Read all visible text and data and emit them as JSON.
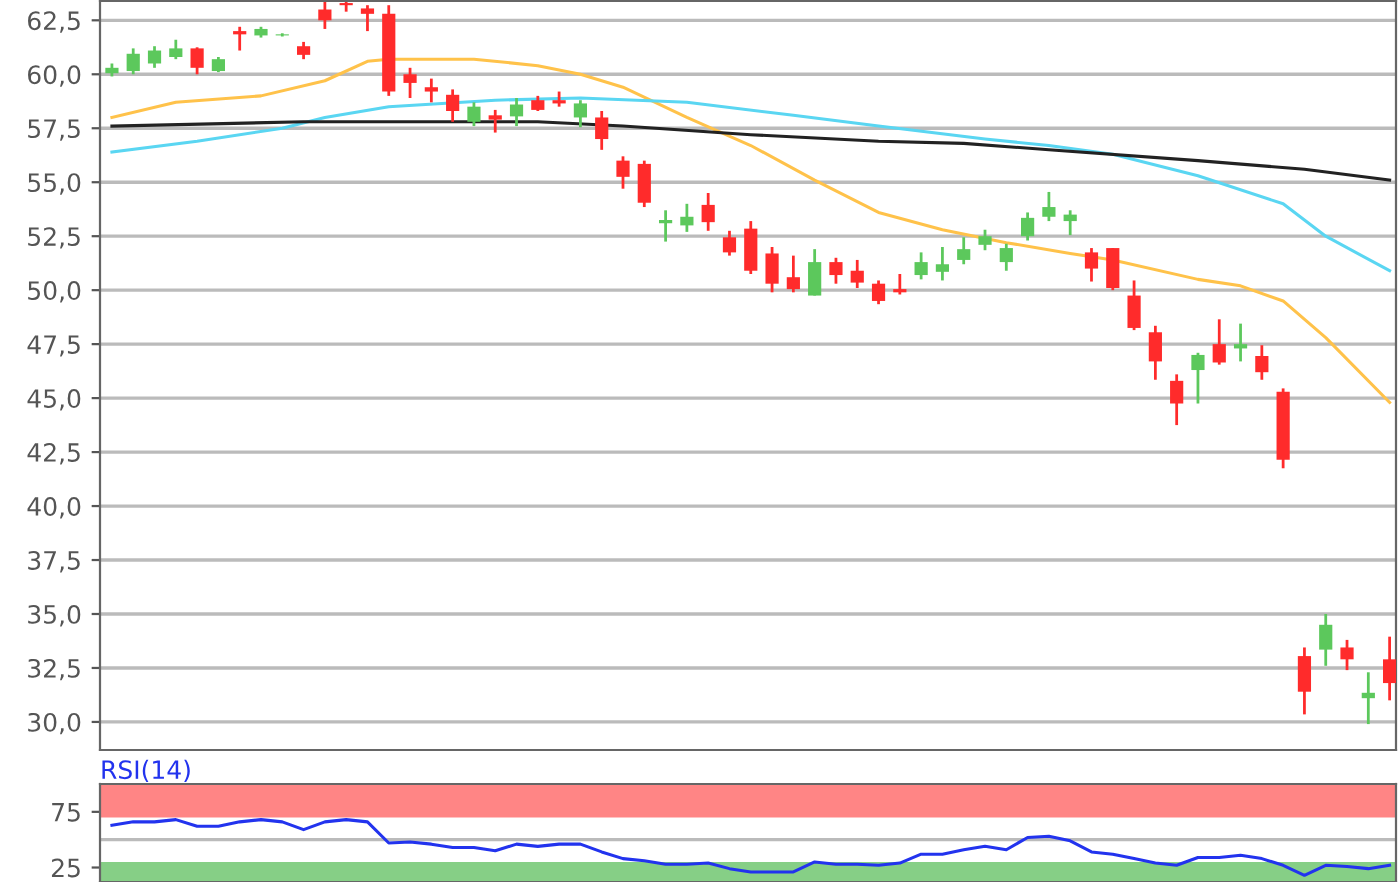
{
  "chart_data": [
    {
      "type": "candlestick",
      "categories": [
        null,
        null,
        null,
        null,
        null,
        null,
        null,
        null,
        null,
        null,
        null,
        null,
        null,
        null,
        null,
        null,
        null,
        null,
        null,
        null,
        null,
        null,
        null,
        null,
        null,
        null,
        null,
        null,
        null,
        null,
        null,
        null,
        null,
        null,
        null,
        null,
        null,
        null,
        null,
        null,
        null,
        null,
        null,
        null,
        null,
        null,
        null,
        null,
        null,
        null,
        null,
        null,
        null,
        null,
        null,
        null,
        null,
        null,
        null,
        null,
        null
      ],
      "ohlc": [
        [
          60.05,
          60.5,
          59.9,
          60.3
        ],
        [
          60.15,
          61.2,
          60.0,
          60.95
        ],
        [
          60.5,
          61.3,
          60.3,
          61.1
        ],
        [
          60.8,
          61.6,
          60.7,
          61.2
        ],
        [
          61.2,
          61.25,
          60.0,
          60.3
        ],
        [
          60.15,
          60.8,
          60.1,
          60.7
        ],
        [
          62.0,
          62.2,
          61.1,
          61.85
        ],
        [
          61.8,
          62.2,
          61.7,
          62.1
        ],
        [
          61.8,
          61.9,
          61.75,
          61.85
        ],
        [
          61.3,
          61.5,
          60.7,
          60.9
        ],
        [
          63.0,
          63.35,
          62.1,
          62.5
        ],
        [
          63.3,
          63.35,
          62.9,
          63.2
        ],
        [
          63.05,
          63.2,
          62.0,
          62.8
        ],
        [
          62.8,
          63.2,
          59.0,
          59.2
        ],
        [
          60.0,
          60.3,
          58.9,
          59.6
        ],
        [
          59.4,
          59.8,
          58.7,
          59.2
        ],
        [
          59.05,
          59.3,
          57.8,
          58.3
        ],
        [
          57.8,
          58.7,
          57.6,
          58.5
        ],
        [
          58.1,
          58.35,
          57.3,
          57.9
        ],
        [
          58.05,
          58.9,
          57.6,
          58.6
        ],
        [
          58.8,
          59.0,
          58.3,
          58.35
        ],
        [
          58.8,
          59.2,
          58.5,
          58.65
        ],
        [
          58.0,
          58.8,
          57.55,
          58.65
        ],
        [
          58.0,
          58.3,
          56.5,
          57.0
        ],
        [
          56.0,
          56.2,
          54.7,
          55.25
        ],
        [
          55.85,
          56.0,
          53.85,
          54.05
        ],
        [
          53.1,
          53.7,
          52.25,
          53.25
        ],
        [
          53.0,
          54.0,
          52.7,
          53.4
        ],
        [
          53.95,
          54.5,
          52.75,
          53.15
        ],
        [
          52.45,
          52.75,
          51.6,
          51.75
        ],
        [
          52.85,
          53.2,
          50.75,
          50.9
        ],
        [
          51.7,
          52.0,
          49.9,
          50.3
        ],
        [
          50.6,
          51.6,
          49.9,
          50.05
        ],
        [
          49.75,
          51.9,
          49.75,
          51.3
        ],
        [
          51.3,
          51.5,
          50.3,
          50.7
        ],
        [
          50.9,
          51.4,
          50.1,
          50.35
        ],
        [
          50.3,
          50.45,
          49.35,
          49.5
        ],
        [
          50.05,
          50.75,
          49.8,
          49.9
        ],
        [
          50.7,
          51.75,
          50.5,
          51.3
        ],
        [
          50.85,
          52.0,
          50.45,
          51.2
        ],
        [
          51.4,
          52.45,
          51.2,
          51.9
        ],
        [
          52.1,
          52.8,
          51.85,
          52.5
        ],
        [
          51.3,
          52.15,
          50.9,
          51.95
        ],
        [
          52.5,
          53.6,
          52.3,
          53.35
        ],
        [
          53.4,
          54.55,
          53.2,
          53.85
        ],
        [
          53.2,
          53.7,
          52.55,
          53.5
        ],
        [
          51.75,
          51.95,
          50.4,
          51.0
        ],
        [
          51.95,
          51.95,
          50.0,
          50.1
        ],
        [
          49.75,
          50.45,
          48.15,
          48.25
        ],
        [
          48.05,
          48.35,
          45.85,
          46.7
        ],
        [
          45.8,
          46.1,
          43.75,
          44.75
        ],
        [
          46.3,
          47.1,
          44.75,
          47.0
        ],
        [
          47.5,
          48.65,
          46.55,
          46.65
        ],
        [
          47.3,
          48.45,
          46.7,
          47.5
        ],
        [
          46.95,
          47.45,
          45.85,
          46.2
        ],
        [
          45.3,
          45.45,
          41.75,
          42.15
        ],
        [
          33.05,
          33.45,
          30.35,
          31.4
        ],
        [
          33.35,
          35.0,
          32.6,
          34.5
        ],
        [
          33.45,
          33.8,
          32.4,
          32.9
        ],
        [
          31.1,
          32.3,
          29.9,
          31.35
        ],
        [
          32.9,
          33.95,
          31.0,
          31.8
        ]
      ],
      "series": [
        {
          "type": "line",
          "color": "#ffc24a",
          "values": [
            58.0,
            null,
            null,
            58.7,
            null,
            null,
            null,
            59.0,
            null,
            null,
            59.7,
            null,
            60.6,
            60.7,
            null,
            null,
            null,
            60.7,
            null,
            null,
            60.4,
            null,
            60.0,
            null,
            59.4,
            null,
            null,
            58.0,
            null,
            null,
            56.7,
            null,
            null,
            55.1,
            null,
            null,
            53.6,
            null,
            null,
            52.8,
            null,
            null,
            52.2,
            null,
            null,
            51.7,
            null,
            51.4,
            null,
            null,
            null,
            50.5,
            null,
            50.2,
            null,
            49.5,
            null,
            47.8,
            null,
            null,
            44.8
          ]
        },
        {
          "type": "line",
          "color": "#5ad6f2",
          "values": [
            56.4,
            null,
            null,
            null,
            56.9,
            null,
            null,
            null,
            57.5,
            null,
            58.0,
            null,
            null,
            58.5,
            null,
            null,
            null,
            null,
            58.8,
            null,
            null,
            null,
            58.9,
            null,
            null,
            null,
            null,
            58.7,
            null,
            null,
            null,
            null,
            58.1,
            null,
            null,
            null,
            57.6,
            null,
            null,
            null,
            null,
            57.0,
            null,
            null,
            56.7,
            null,
            null,
            56.3,
            null,
            null,
            null,
            55.3,
            null,
            null,
            null,
            54.0,
            null,
            52.5,
            null,
            null,
            50.9
          ]
        },
        {
          "type": "line",
          "color": "#222222",
          "values": [
            57.6,
            null,
            null,
            null,
            null,
            null,
            null,
            null,
            null,
            57.8,
            null,
            null,
            null,
            null,
            57.8,
            null,
            null,
            null,
            null,
            null,
            57.8,
            null,
            null,
            null,
            57.6,
            null,
            null,
            null,
            null,
            null,
            57.2,
            null,
            null,
            null,
            null,
            null,
            56.9,
            null,
            null,
            null,
            56.8,
            null,
            null,
            null,
            56.5,
            null,
            null,
            null,
            null,
            null,
            null,
            56.0,
            null,
            null,
            null,
            null,
            55.6,
            null,
            null,
            null,
            55.1
          ]
        }
      ],
      "ylim": [
        28.7,
        63.4
      ],
      "yticks": [
        {
          "value": 30,
          "label": "30,0"
        },
        {
          "value": 32.5,
          "label": "32,5"
        },
        {
          "value": 35,
          "label": "35,0"
        },
        {
          "value": 37.5,
          "label": "37,5"
        },
        {
          "value": 40,
          "label": "40,0"
        },
        {
          "value": 42.5,
          "label": "42,5"
        },
        {
          "value": 45,
          "label": "45,0"
        },
        {
          "value": 47.5,
          "label": "47,5"
        },
        {
          "value": 50,
          "label": "50,0"
        },
        {
          "value": 52.5,
          "label": "52,5"
        },
        {
          "value": 55,
          "label": "55,0"
        },
        {
          "value": 57.5,
          "label": "57,5"
        },
        {
          "value": 60,
          "label": "60,0"
        },
        {
          "value": 62.5,
          "label": "62,5"
        }
      ],
      "grid": "y",
      "tick_labels": "y"
    },
    {
      "type": "line",
      "title": "RSI(14)",
      "categories": [
        null,
        null,
        null,
        null,
        null,
        null,
        null,
        null,
        null,
        null,
        null,
        null,
        null,
        null,
        null,
        null,
        null,
        null,
        null,
        null,
        null,
        null,
        null,
        null,
        null,
        null,
        null,
        null,
        null,
        null,
        null,
        null,
        null,
        null,
        null,
        null,
        null,
        null,
        null,
        null,
        null,
        null,
        null,
        null,
        null,
        null,
        null,
        null,
        null,
        null,
        null,
        null,
        null,
        null,
        null,
        null,
        null,
        null,
        null,
        null,
        null
      ],
      "series": [
        {
          "color": "#2233ee",
          "values": [
            63,
            66,
            66,
            68,
            62,
            62,
            66,
            68,
            66,
            59,
            66,
            68,
            66,
            47,
            48,
            46,
            43,
            43,
            40,
            46,
            44,
            46,
            46,
            39,
            33,
            31,
            28,
            28,
            29,
            24,
            21,
            21,
            21,
            30,
            28,
            28,
            27,
            29,
            37,
            37,
            41,
            44,
            41,
            52,
            53,
            49,
            39,
            37,
            33,
            29,
            27,
            34,
            34,
            36,
            33,
            27,
            18,
            27,
            26,
            24,
            27
          ]
        }
      ],
      "ylim": [
        12,
        100
      ],
      "yticks": [
        75,
        25
      ],
      "bands": [
        {
          "axis": "y",
          "from": 70,
          "to": 100,
          "color": "#ff8585"
        },
        {
          "axis": "y",
          "from": 12,
          "to": 30,
          "color": "#86cf86"
        }
      ],
      "ref_lines": [
        {
          "axis": "y",
          "value": 50,
          "color": "#bbbbbb"
        }
      ],
      "tick_labels": "y"
    }
  ]
}
